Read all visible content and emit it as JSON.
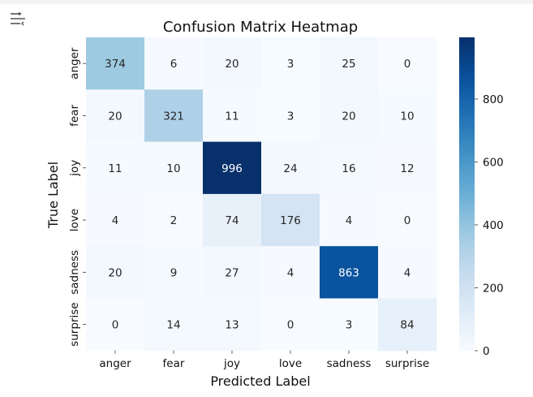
{
  "chart_data": {
    "type": "heatmap",
    "title": "Confusion Matrix Heatmap",
    "xlabel": "Predicted Label",
    "ylabel": "True Label",
    "x_categories": [
      "anger",
      "fear",
      "joy",
      "love",
      "sadness",
      "surprise"
    ],
    "y_categories": [
      "anger",
      "fear",
      "joy",
      "love",
      "sadness",
      "surprise"
    ],
    "values": [
      [
        374,
        6,
        20,
        3,
        25,
        0
      ],
      [
        20,
        321,
        11,
        3,
        20,
        10
      ],
      [
        11,
        10,
        996,
        24,
        16,
        12
      ],
      [
        4,
        2,
        74,
        176,
        4,
        0
      ],
      [
        20,
        9,
        27,
        4,
        863,
        4
      ],
      [
        0,
        14,
        13,
        0,
        3,
        84
      ]
    ],
    "colormap": "Blues",
    "colorbar": {
      "range": [
        0,
        996
      ],
      "ticks": [
        0,
        200,
        400,
        600,
        800
      ],
      "tick_labels": [
        "0",
        "200",
        "400",
        "600",
        "800"
      ]
    }
  },
  "toolbar": {
    "output_icon": "output-toggle-icon"
  }
}
